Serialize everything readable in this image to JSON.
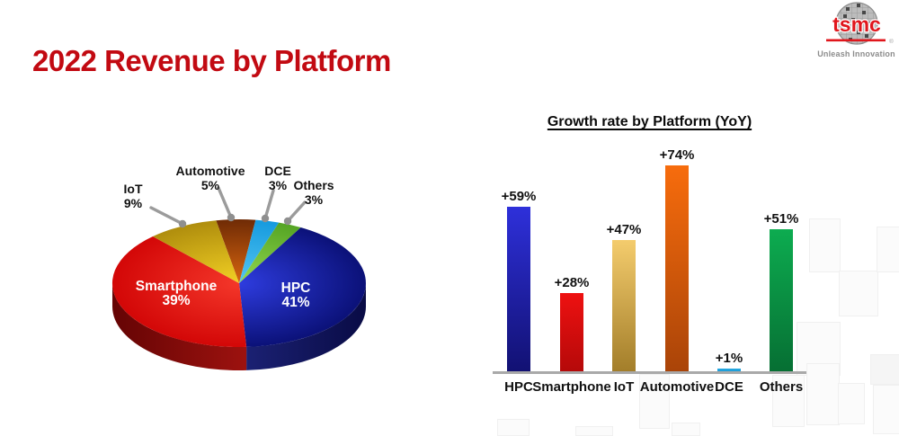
{
  "slide": {
    "title": "2022 Revenue by Platform",
    "title_color": "#c20a12"
  },
  "logo": {
    "brand": "tsmc",
    "registered": "®",
    "tagline": "Unleash Innovation",
    "brand_color": "#e0161c"
  },
  "chart_data": [
    {
      "type": "pie",
      "style": "3d",
      "unit": "percent",
      "start_angle_deg": -10.5,
      "slices": [
        {
          "label": "Automotive",
          "value": 5,
          "color_inner": "#d8650f",
          "color_outer": "#6f2b05"
        },
        {
          "label": "DCE",
          "value": 3,
          "color_inner": "#54c5f2",
          "color_outer": "#159ade"
        },
        {
          "label": "Others",
          "value": 3,
          "color_inner": "#93d84e",
          "color_outer": "#55a424"
        },
        {
          "label": "HPC",
          "value": 41,
          "color_inner": "#2e3cdf",
          "color_outer": "#0b1178",
          "wall_left": "#1b2173",
          "wall_right": "#090b45"
        },
        {
          "label": "Smartphone",
          "value": 39,
          "color_inner": "#f4372a",
          "color_outer": "#d30707",
          "wall_left": "#650404",
          "wall_right": "#9d120f"
        },
        {
          "label": "IoT",
          "value": 9,
          "color_inner": "#f2d024",
          "color_outer": "#af8d0d"
        }
      ],
      "inner_labels": [
        {
          "text": "Smartphone",
          "pct": "39%"
        },
        {
          "text": "HPC",
          "pct": "41%"
        }
      ],
      "callouts": [
        {
          "text": "IoT",
          "pct": "9%"
        },
        {
          "text": "Automotive",
          "pct": "5%"
        },
        {
          "text": "DCE",
          "pct": "3%"
        },
        {
          "text": "Others",
          "pct": "3%"
        }
      ]
    },
    {
      "type": "bar",
      "title": "Growth rate by Platform (YoY)",
      "categories": [
        "HPC",
        "Smartphone",
        "IoT",
        "Automotive",
        "DCE",
        "Others"
      ],
      "values": [
        59,
        28,
        47,
        74,
        1,
        51
      ],
      "value_labels": [
        "+59%",
        "+28%",
        "+47%",
        "+74%",
        "+1%",
        "+51%"
      ],
      "ylim": [
        0,
        80
      ],
      "grid": false,
      "legend": "none",
      "colors": [
        {
          "top": "#2e30da",
          "bottom": "#121173"
        },
        {
          "top": "#ee1111",
          "bottom": "#b50909"
        },
        {
          "top": "#f4cc6d",
          "bottom": "#a37e2a"
        },
        {
          "top": "#f76c0d",
          "bottom": "#aa4408"
        },
        {
          "top": "#29abe2",
          "bottom": "#1b9cd8"
        },
        {
          "top": "#0dac50",
          "bottom": "#066f33"
        }
      ]
    }
  ]
}
